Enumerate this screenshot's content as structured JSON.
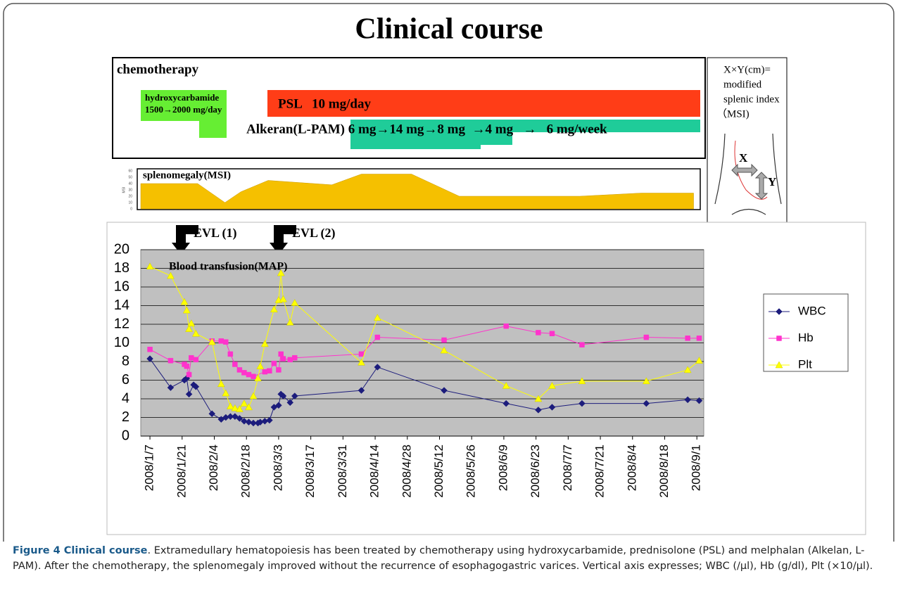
{
  "title": "Clinical course",
  "chemotherapy": {
    "label": "chemotherapy",
    "hydroxycarbamide": [
      "hydroxycarbamide",
      "1500→2000 mg/day"
    ],
    "psl": "PSL   10 mg/day",
    "alkeran": "Alkeran(L-PAM) 6 mg→14 mg→8 mg  →4 mg   →   6 mg/week"
  },
  "msi_note": [
    "X×Y(cm)=",
    "modified",
    "splenic index",
    "（MSI)"
  ],
  "msi_axes": [
    "X",
    "Y"
  ],
  "chart_data": [
    {
      "type": "area",
      "title": "splenomegaly(MSI)",
      "y_label": "MSI",
      "color": "#f5c000",
      "x": [
        "2008/1/3",
        "2008/1/28",
        "2008/2/9",
        "2008/2/16",
        "2008/2/28",
        "2008/3/27",
        "2008/4/9",
        "2008/5/1",
        "2008/5/22",
        "2008/7/14",
        "2008/8/10",
        "2008/9/2"
      ],
      "values": [
        40,
        40,
        10,
        27,
        45,
        38,
        55,
        55,
        20,
        20,
        25,
        25
      ],
      "xlim": [
        "2008/1/3",
        "2008/9/4"
      ],
      "ylim": [
        0,
        60
      ],
      "yticks": [
        0,
        10,
        20,
        30,
        40,
        50,
        60
      ]
    },
    {
      "type": "line",
      "grid": true,
      "background": "#c0c0c0",
      "legend": "right",
      "annotations": [
        "EVL (1)",
        "EVL (2)",
        "Blood transfusion(MAP)"
      ],
      "xlim": [
        "2008/1/3",
        "2008/9/4"
      ],
      "xticks": [
        "2008/1/7",
        "2008/1/21",
        "2008/2/4",
        "2008/2/18",
        "2008/3/3",
        "2008/3/17",
        "2008/3/31",
        "2008/4/14",
        "2008/4/28",
        "2008/5/12",
        "2008/5/26",
        "2008/6/9",
        "2008/6/23",
        "2008/7/7",
        "2008/7/21",
        "2008/8/4",
        "2008/8/18",
        "2008/9/1"
      ],
      "ylim": [
        0,
        20
      ],
      "yticks": [
        0,
        2,
        4,
        6,
        8,
        10,
        12,
        14,
        16,
        18,
        20
      ],
      "series": [
        {
          "name": "WBC",
          "color": "#1c1c7c",
          "marker": "diamond",
          "x": [
            "2008/1/7",
            "2008/1/16",
            "2008/1/22",
            "2008/1/23",
            "2008/1/24",
            "2008/1/26",
            "2008/1/27",
            "2008/2/3",
            "2008/2/7",
            "2008/2/9",
            "2008/2/11",
            "2008/2/13",
            "2008/2/15",
            "2008/2/17",
            "2008/2/19",
            "2008/2/21",
            "2008/2/23",
            "2008/2/24",
            "2008/2/26",
            "2008/2/28",
            "2008/3/1",
            "2008/3/3",
            "2008/3/4",
            "2008/3/5",
            "2008/3/8",
            "2008/3/10",
            "2008/4/8",
            "2008/4/15",
            "2008/5/14",
            "2008/6/10",
            "2008/6/24",
            "2008/6/30",
            "2008/7/13",
            "2008/8/10",
            "2008/8/28",
            "2008/9/2"
          ],
          "values": [
            8.3,
            5.2,
            6.0,
            6.2,
            4.5,
            5.5,
            5.3,
            2.4,
            1.8,
            2.0,
            2.1,
            2.1,
            1.9,
            1.6,
            1.5,
            1.4,
            1.4,
            1.5,
            1.6,
            1.7,
            3.1,
            3.3,
            4.5,
            4.3,
            3.6,
            4.3,
            4.9,
            7.4,
            4.9,
            3.5,
            2.8,
            3.1,
            3.5,
            3.5,
            3.9,
            3.8
          ]
        },
        {
          "name": "Hb",
          "color": "#ff33cc",
          "marker": "square",
          "x": [
            "2008/1/7",
            "2008/1/16",
            "2008/1/22",
            "2008/1/23",
            "2008/1/24",
            "2008/1/25",
            "2008/1/27",
            "2008/2/3",
            "2008/2/7",
            "2008/2/9",
            "2008/2/11",
            "2008/2/13",
            "2008/2/15",
            "2008/2/17",
            "2008/2/19",
            "2008/2/21",
            "2008/2/26",
            "2008/2/28",
            "2008/3/1",
            "2008/3/3",
            "2008/3/4",
            "2008/3/5",
            "2008/3/8",
            "2008/3/10",
            "2008/4/8",
            "2008/4/15",
            "2008/5/14",
            "2008/6/10",
            "2008/6/24",
            "2008/6/30",
            "2008/7/13",
            "2008/8/10",
            "2008/8/28",
            "2008/9/2"
          ],
          "values": [
            9.3,
            8.1,
            7.7,
            7.5,
            6.6,
            8.4,
            8.2,
            10.2,
            10.2,
            10.1,
            8.8,
            7.7,
            7.1,
            6.8,
            6.6,
            6.4,
            6.9,
            7.0,
            7.8,
            7.1,
            8.8,
            8.3,
            8.2,
            8.4,
            8.8,
            10.6,
            10.3,
            11.8,
            11.1,
            11.0,
            9.8,
            10.6,
            10.5,
            10.5
          ]
        },
        {
          "name": "Plt",
          "color": "#ffff00",
          "marker": "triangle",
          "x": [
            "2008/1/7",
            "2008/1/16",
            "2008/1/22",
            "2008/1/23",
            "2008/1/24",
            "2008/1/25",
            "2008/1/27",
            "2008/2/3",
            "2008/2/7",
            "2008/2/9",
            "2008/2/11",
            "2008/2/13",
            "2008/2/15",
            "2008/2/17",
            "2008/2/19",
            "2008/2/21",
            "2008/2/23",
            "2008/2/24",
            "2008/2/26",
            "2008/3/1",
            "2008/3/3",
            "2008/3/4",
            "2008/3/5",
            "2008/3/8",
            "2008/3/10",
            "2008/4/8",
            "2008/4/15",
            "2008/5/14",
            "2008/6/10",
            "2008/6/24",
            "2008/6/30",
            "2008/7/13",
            "2008/8/10",
            "2008/8/28",
            "2008/9/2"
          ],
          "values": [
            18.2,
            17.2,
            14.4,
            13.5,
            11.5,
            12.1,
            11.0,
            10.1,
            5.6,
            4.6,
            3.2,
            3.0,
            2.9,
            3.5,
            3.1,
            4.3,
            6.2,
            7.5,
            9.9,
            13.6,
            14.6,
            17.5,
            14.7,
            12.2,
            14.3,
            7.9,
            12.7,
            9.2,
            5.4,
            4.0,
            5.4,
            5.9,
            5.9,
            7.1,
            8.1
          ]
        }
      ]
    }
  ],
  "caption": {
    "label": "Figure 4 Clinical course",
    "text": ". Extramedullary hematopoiesis has been treated by chemotherapy using hydroxycarbamide, prednisolone (PSL) and melphalan (Alkelan, L-PAM). After the chemotherapy, the splenomegaly improved without the recurrence of esophagogastric varices. Vertical axis expresses; WBC (/μl), Hb (g/dl), Plt (×10/μl)."
  }
}
